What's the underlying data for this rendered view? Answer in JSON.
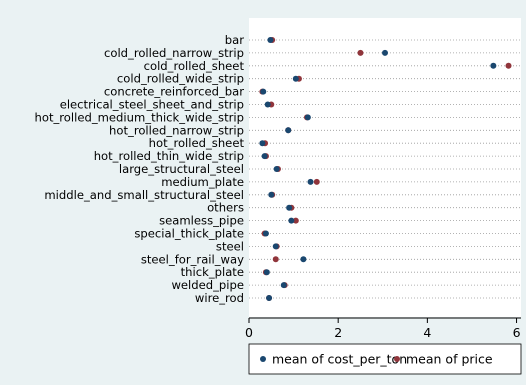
{
  "chart_data": {
    "type": "scatter",
    "title": "",
    "xlabel": "",
    "ylabel": "",
    "xlim": [
      0,
      6.1
    ],
    "x_ticks": [
      0,
      2,
      4,
      6
    ],
    "grid": "dotted horizontal lines per category",
    "legend_position": "bottom-right",
    "categories": [
      "bar",
      "cold_rolled_narrow_strip",
      "cold_rolled_sheet",
      "cold_rolled_wide_strip",
      "concrete_reinforced_bar",
      "electrical_steel_sheet_and_strip",
      "hot_rolled_medium_thick_wide_strip",
      "hot_rolled_narrow_strip",
      "hot_rolled_sheet",
      "hot_rolled_thin_wide_strip",
      "large_structural_steel",
      "medium_plate",
      "middle_and_small_structural_steel",
      "others",
      "seamless_pipe",
      "special_thick_plate",
      "steel",
      "steel_for_rail_way",
      "thick_plate",
      "welded_pipe",
      "wire_rod"
    ],
    "series": [
      {
        "name": "mean of cost_per_ton",
        "color": "#1a476f",
        "values": [
          0.48,
          3.05,
          5.48,
          1.05,
          0.32,
          0.42,
          1.32,
          0.88,
          0.3,
          0.35,
          0.62,
          1.38,
          0.5,
          0.9,
          0.95,
          0.38,
          0.6,
          1.22,
          0.4,
          0.78,
          0.45
        ]
      },
      {
        "name": "mean of price",
        "color": "#90353b",
        "values": [
          0.52,
          2.5,
          5.82,
          1.12,
          0.3,
          0.5,
          1.3,
          0.88,
          0.36,
          0.38,
          0.65,
          1.52,
          0.52,
          0.95,
          1.05,
          0.35,
          0.62,
          0.6,
          0.38,
          0.8,
          0.45
        ]
      }
    ]
  }
}
